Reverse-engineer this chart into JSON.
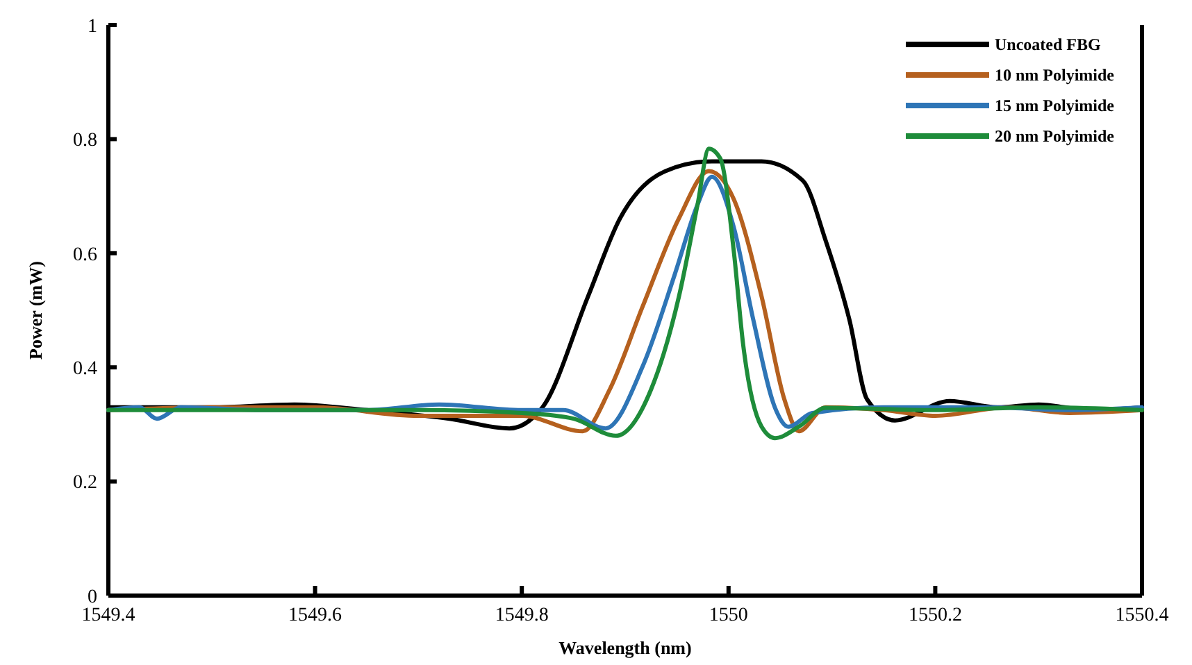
{
  "chart_data": {
    "type": "line",
    "xlabel": "Wavelength (nm)",
    "ylabel": "Power (mW)",
    "xlim": [
      1549.4,
      1550.4
    ],
    "ylim": [
      0,
      1
    ],
    "xticks": [
      1549.4,
      1549.6,
      1549.8,
      1550,
      1550.2,
      1550.4
    ],
    "yticks": [
      0,
      0.2,
      0.4,
      0.6,
      0.8,
      1
    ],
    "grid": false,
    "legend": "top right",
    "marker": "none",
    "line_style": "solid",
    "series": [
      {
        "name": "Uncoated FBG",
        "color": "#000000",
        "x": [
          1549.4,
          1549.5,
          1549.58,
          1549.65,
          1549.73,
          1549.788,
          1549.82,
          1549.864,
          1549.895,
          1549.939,
          1549.984,
          1550.032,
          1550.072,
          1550.094,
          1550.117,
          1550.134,
          1550.161,
          1550.214,
          1550.26,
          1550.3,
          1550.35,
          1550.4
        ],
        "values": [
          0.33,
          0.33,
          0.335,
          0.325,
          0.31,
          0.293,
          0.33,
          0.524,
          0.661,
          0.744,
          0.761,
          0.761,
          0.727,
          0.622,
          0.483,
          0.344,
          0.307,
          0.341,
          0.33,
          0.335,
          0.325,
          0.33
        ]
      },
      {
        "name": "10 nm Polyimide",
        "color": "#b5601e",
        "x": [
          1549.4,
          1549.5,
          1549.6,
          1549.7,
          1549.8,
          1549.859,
          1549.885,
          1549.917,
          1549.952,
          1549.981,
          1550.005,
          1550.032,
          1550.054,
          1550.068,
          1550.094,
          1550.15,
          1550.2,
          1550.27,
          1550.33,
          1550.4
        ],
        "values": [
          0.325,
          0.33,
          0.33,
          0.315,
          0.315,
          0.288,
          0.361,
          0.507,
          0.661,
          0.744,
          0.695,
          0.524,
          0.344,
          0.288,
          0.33,
          0.325,
          0.315,
          0.33,
          0.32,
          0.325
        ]
      },
      {
        "name": "15 nm Polyimide",
        "color": "#2e75b6",
        "x": [
          1549.4,
          1549.43,
          1549.447,
          1549.47,
          1549.55,
          1549.65,
          1549.72,
          1549.8,
          1549.84,
          1549.881,
          1549.917,
          1549.948,
          1549.97,
          1549.984,
          1550.005,
          1550.024,
          1550.045,
          1550.058,
          1550.081,
          1550.15,
          1550.25,
          1550.33,
          1550.4
        ],
        "values": [
          0.325,
          0.33,
          0.31,
          0.33,
          0.325,
          0.325,
          0.335,
          0.325,
          0.325,
          0.293,
          0.402,
          0.563,
          0.685,
          0.734,
          0.646,
          0.483,
          0.329,
          0.296,
          0.32,
          0.33,
          0.33,
          0.325,
          0.33
        ]
      },
      {
        "name": "20 nm Polyimide",
        "color": "#1e8c3a",
        "x": [
          1549.4,
          1549.55,
          1549.7,
          1549.8,
          1549.85,
          1549.891,
          1549.925,
          1549.952,
          1549.97,
          1549.981,
          1549.992,
          1550.005,
          1550.014,
          1550.032,
          1550.045,
          1550.068,
          1550.094,
          1550.2,
          1550.3,
          1550.4
        ],
        "values": [
          0.325,
          0.325,
          0.325,
          0.32,
          0.31,
          0.28,
          0.361,
          0.524,
          0.685,
          0.783,
          0.766,
          0.605,
          0.442,
          0.296,
          0.276,
          0.296,
          0.329,
          0.325,
          0.33,
          0.325
        ]
      }
    ]
  }
}
